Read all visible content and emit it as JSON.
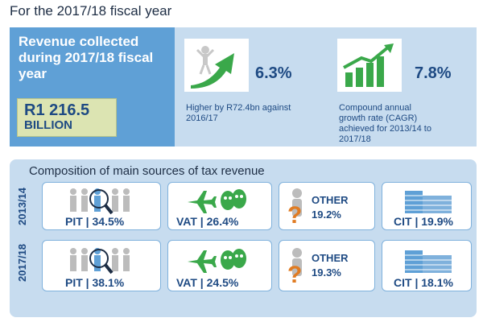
{
  "heading": "For the 2017/18 fiscal year",
  "revenue": {
    "title": "Revenue collected during 2017/18 fiscal year",
    "amount": "R1 216.5",
    "unit": "BILLION"
  },
  "stat_growth": {
    "value": "6.3%",
    "description": "Higher by R72.4bn against 2016/17"
  },
  "stat_cagr": {
    "value": "7.8%",
    "description": "Compound annual growth rate (CAGR) achieved for 2013/14 to 2017/18"
  },
  "composition": {
    "title": "Composition of main sources of tax revenue",
    "rows": [
      {
        "year": "2013/14",
        "pit": "PIT | 34.5%",
        "vat": "VAT | 26.4%",
        "other_label": "OTHER",
        "other_value": "19.2%",
        "cit": "CIT | 19.9%"
      },
      {
        "year": "2017/18",
        "pit": "PIT | 38.1%",
        "vat": "VAT | 24.5%",
        "other_label": "OTHER",
        "other_value": "19.3%",
        "cit": "CIT | 18.1%"
      }
    ]
  },
  "icons": {
    "growth": "growth-arrow-icon",
    "bar_chart": "bar-chart-icon",
    "pit": "people-magnifier-icon",
    "vat": "plane-masks-icon",
    "other": "question-figure-icon",
    "cit": "building-icon"
  },
  "colors": {
    "dark_blue_panel": "#5fa0d6",
    "light_blue": "#c7dcef",
    "text_blue": "#1e4a83",
    "green": "#3aa84a",
    "amount_box": "#dce4b2"
  }
}
